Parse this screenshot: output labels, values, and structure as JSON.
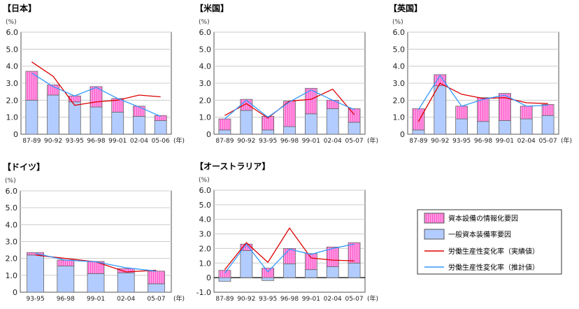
{
  "colors": {
    "it_factor": "#ff88dd",
    "capital_factor": "#b3ccff",
    "actual": "#dd0000",
    "estimated": "#3399ff"
  },
  "legend": {
    "it_factor": "資本設備の情報化要因",
    "capital_factor": "一般資本装備率要因",
    "actual": "労働生産性変化率（実績値）",
    "estimated": "労働生産性変化率（推計値）"
  },
  "chart_data": [
    {
      "type": "bar",
      "title": "【日本】",
      "ylabel": "(%)",
      "xlabel": "(年)",
      "ylim": [
        0,
        6
      ],
      "yticks": [
        "0",
        "1.0",
        "2.0",
        "3.0",
        "4.0",
        "5.0",
        "6.0"
      ],
      "categories": [
        "87-89",
        "90-92",
        "93-95",
        "96-98",
        "99-01",
        "02-04",
        "05-06"
      ],
      "series": [
        {
          "name": "一般資本装備率要因",
          "kind": "bar",
          "values": [
            2.0,
            2.3,
            1.9,
            1.6,
            1.3,
            1.05,
            0.8
          ]
        },
        {
          "name": "資本設備の情報化要因",
          "kind": "bar",
          "values": [
            1.7,
            0.6,
            0.35,
            1.2,
            0.8,
            0.6,
            0.3
          ]
        },
        {
          "name": "労働生産性変化率（実績値）",
          "kind": "line",
          "values": [
            4.25,
            3.4,
            1.7,
            1.9,
            2.0,
            2.3,
            2.2
          ]
        },
        {
          "name": "労働生産性変化率（推計値）",
          "kind": "line",
          "values": [
            3.6,
            2.8,
            2.25,
            2.75,
            2.1,
            1.6,
            1.05
          ]
        }
      ]
    },
    {
      "type": "bar",
      "title": "【米国】",
      "ylabel": "(%)",
      "xlabel": "(年)",
      "ylim": [
        0,
        6
      ],
      "yticks": [
        "0",
        "1.0",
        "2.0",
        "3.0",
        "4.0",
        "5.0",
        "6.0"
      ],
      "categories": [
        "87-89",
        "90-92",
        "93-95",
        "96-98",
        "99-01",
        "02-04",
        "05-07"
      ],
      "series": [
        {
          "name": "一般資本装備率要因",
          "kind": "bar",
          "values": [
            0.25,
            1.4,
            0.25,
            0.45,
            1.2,
            1.5,
            0.7
          ]
        },
        {
          "name": "資本設備の情報化要因",
          "kind": "bar",
          "values": [
            0.65,
            0.65,
            0.8,
            1.5,
            1.5,
            0.5,
            0.8
          ]
        },
        {
          "name": "労働生産性変化率（実績値）",
          "kind": "line",
          "values": [
            1.1,
            1.8,
            0.95,
            1.95,
            2.05,
            2.65,
            1.15
          ]
        },
        {
          "name": "労働生産性変化率（推計値）",
          "kind": "line",
          "values": [
            0.9,
            2.0,
            1.0,
            1.9,
            2.6,
            2.0,
            1.45
          ]
        }
      ]
    },
    {
      "type": "bar",
      "title": "【英国】",
      "ylabel": "(%)",
      "xlabel": "(年)",
      "ylim": [
        0,
        6
      ],
      "yticks": [
        "0",
        "1.0",
        "2.0",
        "3.0",
        "4.0",
        "5.0",
        "6.0"
      ],
      "categories": [
        "87-89",
        "90-92",
        "93-95",
        "96-98",
        "99-01",
        "02-04",
        "05-07"
      ],
      "series": [
        {
          "name": "一般資本装備率要因",
          "kind": "bar",
          "values": [
            0.25,
            2.85,
            0.9,
            0.75,
            0.8,
            0.9,
            1.1
          ]
        },
        {
          "name": "資本設備の情報化要因",
          "kind": "bar",
          "values": [
            1.25,
            0.65,
            0.75,
            1.4,
            1.6,
            0.75,
            0.65
          ]
        },
        {
          "name": "労働生産性変化率（実績値）",
          "kind": "line",
          "values": [
            0.75,
            3.0,
            2.35,
            2.1,
            2.15,
            1.85,
            1.8
          ]
        },
        {
          "name": "労働生産性変化率（推計値）",
          "kind": "line",
          "values": [
            1.45,
            3.45,
            1.65,
            2.05,
            2.3,
            1.65,
            1.7
          ]
        }
      ]
    },
    {
      "type": "bar",
      "title": "【ドイツ】",
      "ylabel": "(%)",
      "xlabel": "(年)",
      "ylim": [
        0,
        6
      ],
      "yticks": [
        "0",
        "1.0",
        "2.0",
        "3.0",
        "4.0",
        "5.0",
        "6.0"
      ],
      "categories": [
        "93-95",
        "96-98",
        "99-01",
        "02-04",
        "05-07"
      ],
      "series": [
        {
          "name": "一般資本装備率要因",
          "kind": "bar",
          "values": [
            2.2,
            1.55,
            1.1,
            1.15,
            0.5
          ]
        },
        {
          "name": "資本設備の情報化要因",
          "kind": "bar",
          "values": [
            0.15,
            0.35,
            0.72,
            0.25,
            0.75
          ]
        },
        {
          "name": "労働生産性変化率（実績値）",
          "kind": "line",
          "values": [
            2.2,
            2.0,
            1.8,
            1.2,
            1.3
          ]
        },
        {
          "name": "労働生産性変化率（推計値）",
          "kind": "line",
          "values": [
            2.3,
            1.9,
            1.8,
            1.45,
            1.25
          ]
        }
      ]
    },
    {
      "type": "bar",
      "title": "【オーストラリア】",
      "ylabel": "(%)",
      "xlabel": "(年)",
      "ylim": [
        -1,
        6
      ],
      "yticks": [
        "-1.0",
        "0",
        "1.0",
        "2.0",
        "3.0",
        "4.0",
        "5.0",
        "6.0"
      ],
      "categories": [
        "87-89",
        "90-92",
        "93-95",
        "96-98",
        "99-01",
        "02-04",
        "05-07"
      ],
      "series": [
        {
          "name": "一般資本装備率要因",
          "kind": "bar",
          "values": [
            -0.25,
            1.85,
            -0.2,
            0.95,
            0.55,
            0.75,
            1.0
          ]
        },
        {
          "name": "資本設備の情報化要因",
          "kind": "bar",
          "values": [
            0.5,
            0.45,
            0.65,
            1.05,
            1.1,
            1.35,
            1.4
          ]
        },
        {
          "name": "労働生産性変化率（実績値）",
          "kind": "line",
          "values": [
            0.55,
            2.4,
            1.05,
            3.4,
            1.35,
            1.2,
            1.15
          ]
        },
        {
          "name": "労働生産性変化率（推計値）",
          "kind": "line",
          "values": [
            0.3,
            2.3,
            0.4,
            1.95,
            1.6,
            2.0,
            2.3
          ]
        }
      ]
    }
  ]
}
